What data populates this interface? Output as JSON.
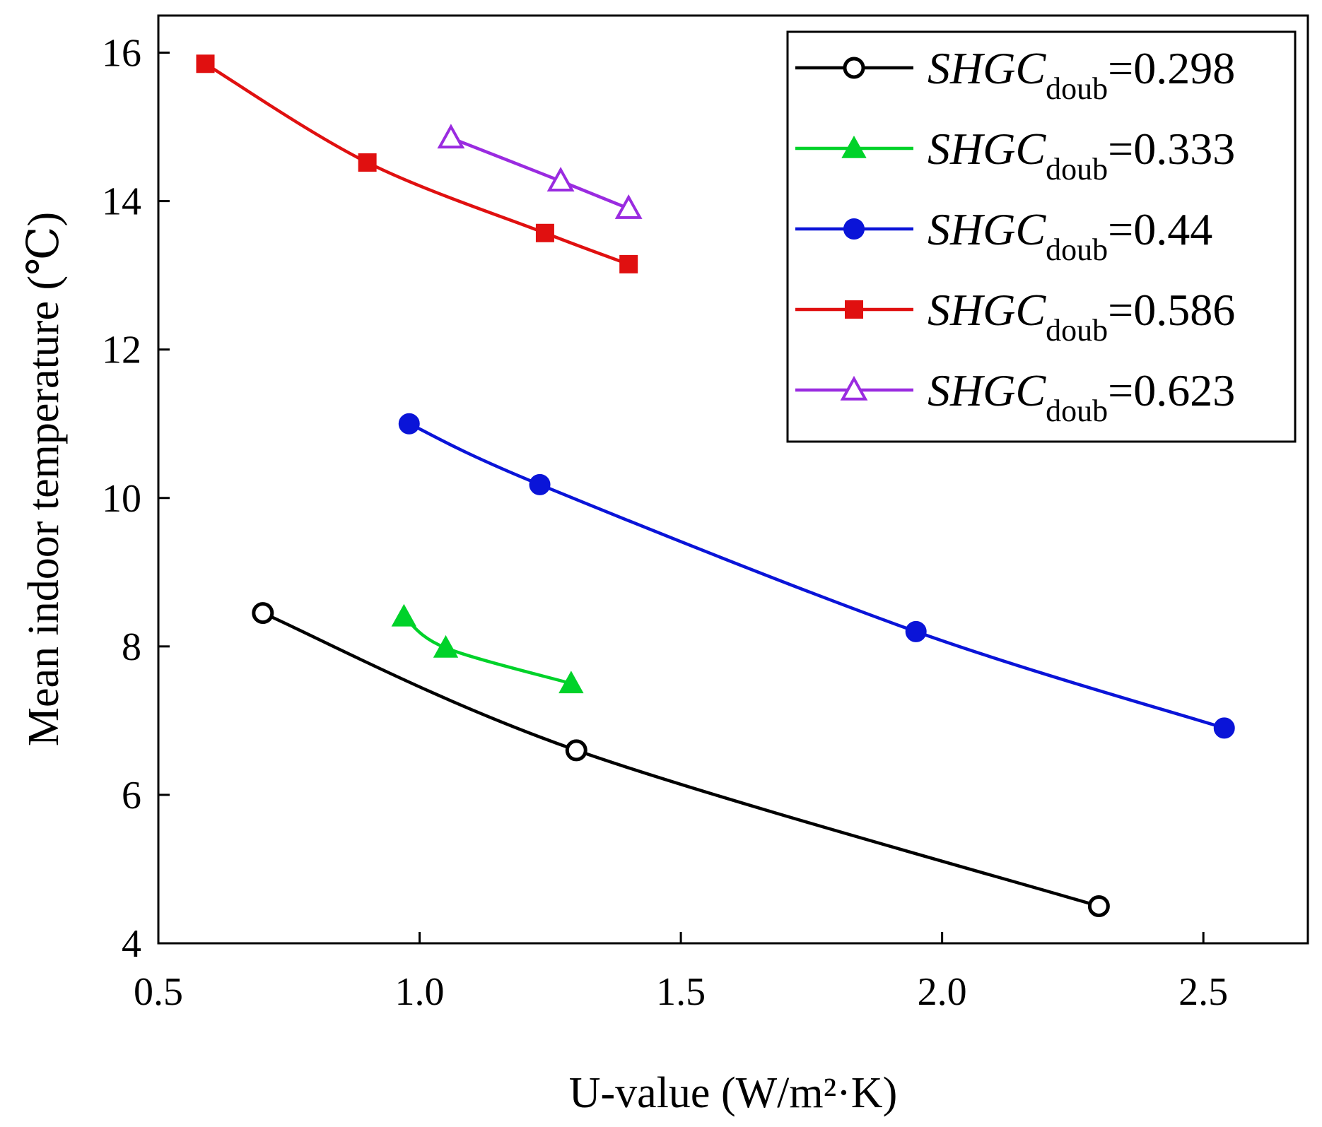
{
  "chart_data": {
    "type": "line",
    "title": "",
    "xlabel": "U-value (W/m²·K)",
    "ylabel": "Mean indoor temperature (℃)",
    "xlim": [
      0.5,
      2.7
    ],
    "ylim": [
      4,
      16.5
    ],
    "xticks": [
      0.5,
      1.0,
      1.5,
      2.0,
      2.5
    ],
    "xtick_labels": [
      "0.5",
      "1.0",
      "1.5",
      "2.0",
      "2.5"
    ],
    "yticks": [
      4,
      6,
      8,
      10,
      12,
      14,
      16
    ],
    "ytick_labels": [
      "4",
      "6",
      "8",
      "10",
      "12",
      "14",
      "16"
    ],
    "grid": false,
    "legend_position": "top-right",
    "series": [
      {
        "name": "SHGC_doub=0.298",
        "label_main": "SHGC",
        "label_sub": "doub",
        "label_value": "=0.298",
        "color": "#000000",
        "marker": "open-circle",
        "x": [
          0.7,
          1.3,
          2.3
        ],
        "y": [
          8.45,
          6.6,
          4.5
        ]
      },
      {
        "name": "SHGC_doub=0.333",
        "label_main": "SHGC",
        "label_sub": "doub",
        "label_value": "=0.333",
        "color": "#00d22a",
        "marker": "filled-triangle",
        "x": [
          0.97,
          1.05,
          1.29
        ],
        "y": [
          8.4,
          7.98,
          7.5
        ]
      },
      {
        "name": "SHGC_doub=0.44",
        "label_main": "SHGC",
        "label_sub": "doub",
        "label_value": "=0.44",
        "color": "#0a14d8",
        "marker": "filled-circle",
        "x": [
          0.98,
          1.23,
          1.95,
          2.54
        ],
        "y": [
          11.0,
          10.18,
          8.2,
          6.9
        ]
      },
      {
        "name": "SHGC_doub=0.586",
        "label_main": "SHGC",
        "label_sub": "doub",
        "label_value": "=0.586",
        "color": "#e01010",
        "marker": "filled-square",
        "x": [
          0.59,
          0.9,
          1.24,
          1.4
        ],
        "y": [
          15.85,
          14.52,
          13.57,
          13.15
        ]
      },
      {
        "name": "SHGC_doub=0.623",
        "label_main": "SHGC",
        "label_sub": "doub",
        "label_value": "=0.623",
        "color": "#9a2be0",
        "marker": "open-triangle",
        "x": [
          1.06,
          1.27,
          1.4
        ],
        "y": [
          14.85,
          14.27,
          13.9
        ]
      }
    ]
  }
}
